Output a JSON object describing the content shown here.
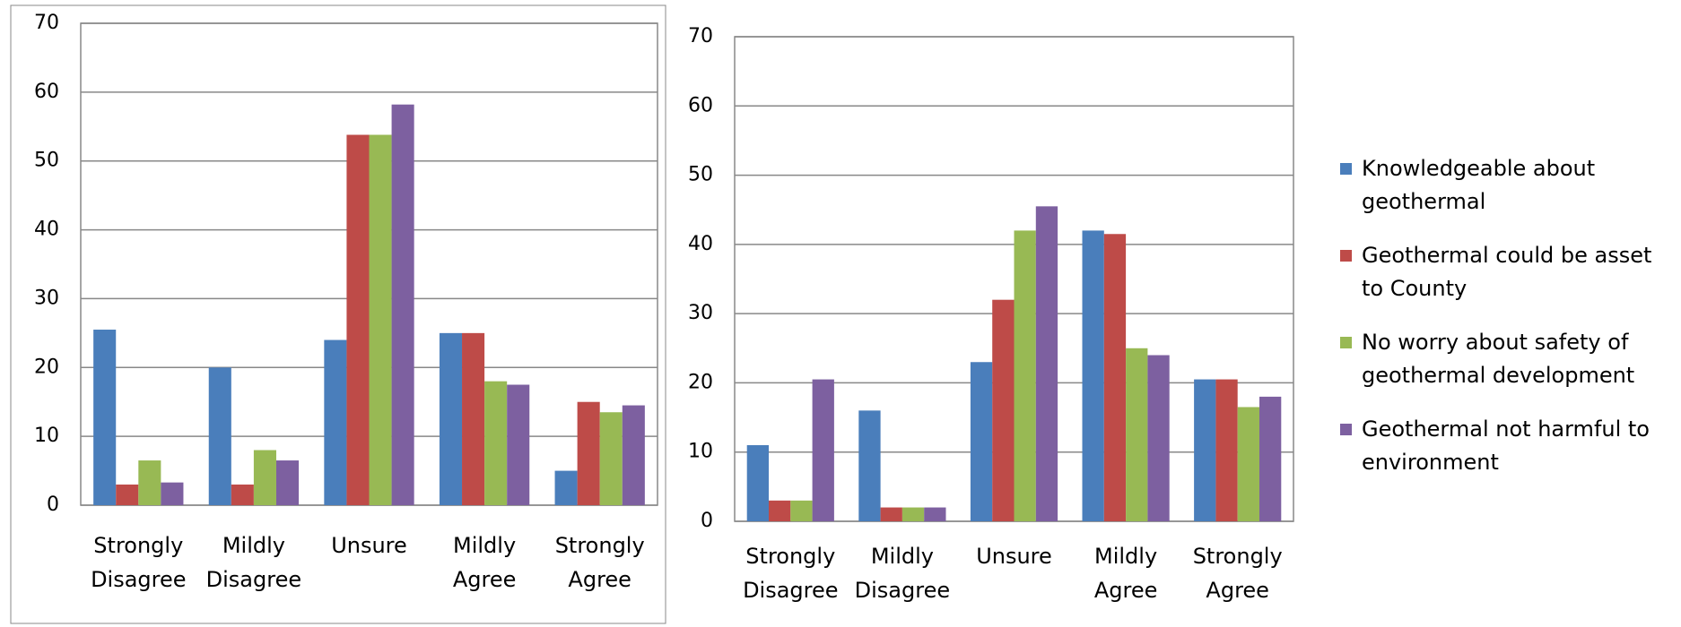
{
  "chart_data": [
    {
      "type": "bar",
      "categories": [
        "Strongly Disagree",
        "Mildly Disagree",
        "Unsure",
        "Mildly Agree",
        "Strongly Agree"
      ],
      "series": [
        {
          "color": "#4a7ebb",
          "values": [
            25.5,
            20,
            24,
            25,
            5
          ]
        },
        {
          "color": "#be4b48",
          "values": [
            3,
            3,
            53.8,
            25,
            15
          ]
        },
        {
          "color": "#98b954",
          "values": [
            6.5,
            8,
            53.8,
            18,
            13.5
          ]
        },
        {
          "color": "#7d60a0",
          "values": [
            3.3,
            6.5,
            58.2,
            17.5,
            14.5
          ]
        }
      ],
      "ylim": [
        0,
        70
      ],
      "yticks": [
        0,
        10,
        20,
        30,
        40,
        50,
        60,
        70
      ],
      "grid": true
    },
    {
      "type": "bar",
      "categories": [
        "Strongly Disagree",
        "Mildly Disagree",
        "Unsure",
        "Mildly Agree",
        "Strongly Agree"
      ],
      "series": [
        {
          "name": "Knowledgeable about geothermal",
          "color": "#4a7ebb",
          "values": [
            11,
            16,
            23,
            42,
            20.5
          ]
        },
        {
          "name": "Geothermal could be asset to County",
          "color": "#be4b48",
          "values": [
            3,
            2,
            32,
            41.5,
            20.5
          ]
        },
        {
          "name": "No worry about safety of geothermal development",
          "color": "#98b954",
          "values": [
            3,
            2,
            42,
            25,
            16.5
          ]
        },
        {
          "name": "Geothermal not harmful to environment",
          "color": "#7d60a0",
          "values": [
            20.5,
            2,
            45.5,
            24,
            18
          ]
        }
      ],
      "ylim": [
        0,
        70
      ],
      "yticks": [
        0,
        10,
        20,
        30,
        40,
        50,
        60,
        70
      ],
      "grid": true,
      "legend": "right"
    }
  ]
}
